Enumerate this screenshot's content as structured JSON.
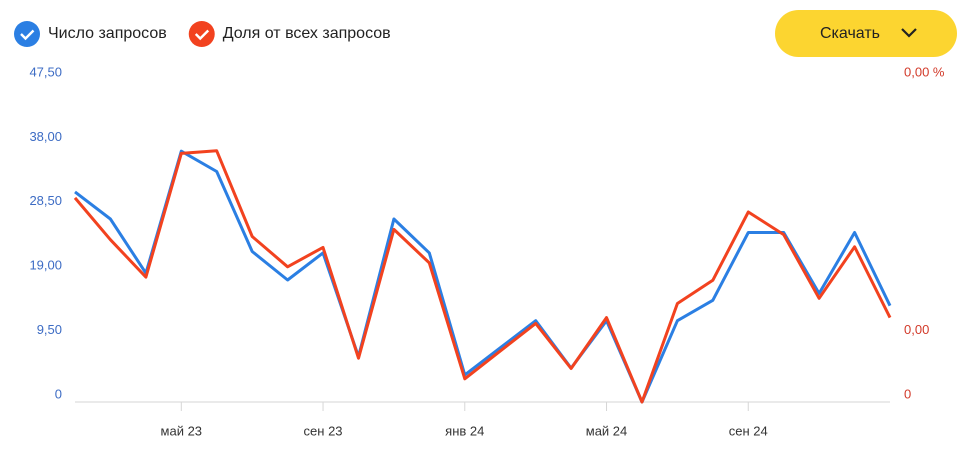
{
  "download_button": "Скачать",
  "chart_data": {
    "type": "line",
    "categories": [
      null,
      null,
      null,
      "май 23",
      null,
      null,
      null,
      "сен 23",
      null,
      null,
      null,
      "янв 24",
      null,
      null,
      null,
      "май 24",
      null,
      null,
      null,
      "сен 24",
      null,
      null,
      null,
      null
    ],
    "series": [
      {
        "name": "Число запросов",
        "color": "#2b7fe3",
        "values": [
          31.0,
          27.0,
          19.0,
          37.0,
          34.0,
          22.2,
          18.0,
          22.0,
          6.7,
          27.0,
          22.0,
          4.0,
          8.0,
          12.0,
          5.0,
          12.0,
          0,
          12.0,
          15.0,
          25.0,
          25.0,
          16.0,
          25.0,
          14.2
        ]
      },
      {
        "name": "Доля от всех запросов",
        "color": "#f2421f",
        "axis": "y2",
        "values": [
          0.00317,
          0.00252,
          0.00194,
          0.00386,
          0.0039,
          0.00257,
          0.0021,
          0.0024,
          0.00068,
          0.00268,
          0.00216,
          0.00036,
          0.00079,
          0.00122,
          0.00052,
          0.00131,
          0,
          0.00153,
          0.00189,
          0.00295,
          0.0026,
          0.00161,
          0.00241,
          0.00131
        ]
      }
    ],
    "ylim": [
      0,
      47.5
    ],
    "yticks": [
      0,
      {
        "value": 9.5,
        "label": "9,50"
      },
      {
        "value": 19,
        "label": "19,00"
      },
      {
        "value": 28.5,
        "label": "28,50"
      },
      {
        "value": 38,
        "label": "38,00"
      },
      {
        "value": 47.5,
        "label": "47,50"
      }
    ],
    "y2lim": [
      0,
      0.005
    ],
    "y2ticks": [
      0,
      {
        "value": 0.001,
        "label": "0,00"
      },
      {
        "value": 0.005,
        "label": "0,00 %"
      }
    ]
  }
}
